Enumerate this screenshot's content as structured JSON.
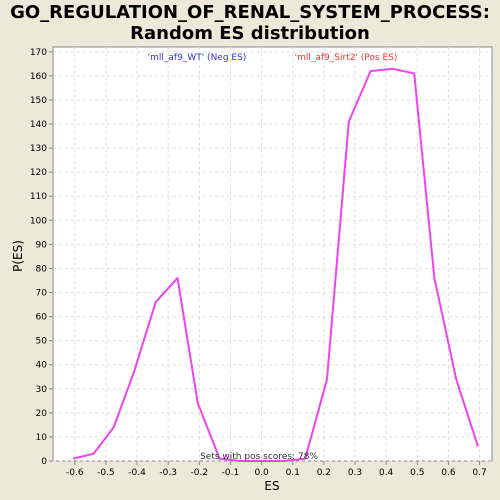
{
  "title_line1": "GO_REGULATION_OF_RENAL_SYSTEM_PROCESS:",
  "title_line2": "Random ES distribution",
  "colors": {
    "background": "#ece9d8",
    "plot_bg": "#ffffff",
    "line": "#ee44ee",
    "neg_label": "#3333cc",
    "pos_label": "#ee3333",
    "grid": "#dddddd"
  },
  "chart_data": {
    "type": "line",
    "xlabel": "ES",
    "ylabel": "P(ES)",
    "xlim": [
      -0.67,
      0.74
    ],
    "ylim": [
      0,
      172
    ],
    "xticks": [
      -0.6,
      -0.5,
      -0.4,
      -0.3,
      -0.2,
      -0.1,
      0.0,
      0.1,
      0.2,
      0.3,
      0.4,
      0.5,
      0.6,
      0.7
    ],
    "xtick_labels": [
      "-0.6",
      "-0.5",
      "-0.4",
      "-0.3",
      "-0.2",
      "-0.1",
      "0.0",
      "0.1",
      "0.2",
      "0.3",
      "0.4",
      "0.5",
      "0.6",
      "0.7"
    ],
    "yticks": [
      0,
      10,
      20,
      30,
      40,
      50,
      60,
      70,
      80,
      90,
      100,
      110,
      120,
      130,
      140,
      150,
      160,
      170
    ],
    "grid": true,
    "series": [
      {
        "x": [
          -0.605,
          -0.54,
          -0.475,
          -0.41,
          -0.34,
          -0.27,
          -0.205,
          -0.135,
          -0.07,
          0.0,
          0.07,
          0.14,
          0.21,
          0.28,
          0.35,
          0.42,
          0.49,
          0.555,
          0.625,
          0.695
        ],
        "y": [
          1,
          3,
          14,
          37,
          66,
          76,
          24,
          1,
          0,
          0,
          0,
          1,
          34,
          141,
          162,
          163,
          161,
          76,
          34,
          6
        ]
      }
    ],
    "annotations": {
      "neg_label": "'mll_af9_WT' (Neg ES)",
      "pos_label": "'mll_af9_Sirt2' (Pos ES)",
      "bottom_text": "Sets with pos scores: 78%"
    }
  }
}
